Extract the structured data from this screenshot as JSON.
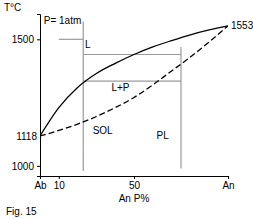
{
  "chart_data": {
    "type": "line",
    "x_label": "An P%",
    "y_label": "T°C",
    "caption": "Fig. 15",
    "x": [
      0,
      10,
      20,
      30,
      40,
      50,
      60,
      70,
      80,
      90,
      100
    ],
    "series": [
      {
        "color": "#000000",
        "line_style": "solid",
        "values": [
          1118,
          1230,
          1310,
          1365,
          1405,
          1440,
          1470,
          1495,
          1518,
          1537,
          1553
        ]
      },
      {
        "color": "#000000",
        "line_style": "dashed",
        "values": [
          1118,
          1140,
          1165,
          1195,
          1230,
          1270,
          1320,
          1375,
          1430,
          1490,
          1553
        ]
      }
    ],
    "guides": [
      {
        "color": "#9a9a9a",
        "x": [
          23,
          23
        ],
        "y": [
          1570,
          980
        ]
      },
      {
        "color": "#9a9a9a",
        "x": [
          10,
          23
        ],
        "y": [
          1500,
          1500
        ]
      },
      {
        "color": "#9a9a9a",
        "x": [
          23,
          75
        ],
        "y": [
          1440,
          1440
        ]
      },
      {
        "color": "#9a9a9a",
        "x": [
          23,
          75
        ],
        "y": [
          1335,
          1335
        ]
      },
      {
        "color": "#9a9a9a",
        "x": [
          75,
          75
        ],
        "y": [
          1470,
          990
        ]
      }
    ],
    "xlim": [
      0,
      100
    ],
    "ylim": [
      960,
      1600
    ],
    "xticks": [
      {
        "value": 0,
        "label": "Ab"
      },
      10,
      50,
      {
        "value": 100,
        "label": "An"
      }
    ],
    "yticks": [
      1000,
      1500
    ],
    "grid": false,
    "annotations": [
      {
        "text": "P= 1atm",
        "x": 2,
        "y": 1575
      },
      {
        "text": "L",
        "x": 24,
        "y": 1480
      },
      {
        "text": "L+P",
        "x": 38,
        "y": 1310
      },
      {
        "text": "SOL",
        "x": 28,
        "y": 1140
      },
      {
        "text": "PL",
        "x": 62,
        "y": 1120
      },
      {
        "text": "1118",
        "x": 0,
        "y": 1118
      },
      {
        "text": "1553",
        "x": 100,
        "y": 1553
      }
    ]
  }
}
